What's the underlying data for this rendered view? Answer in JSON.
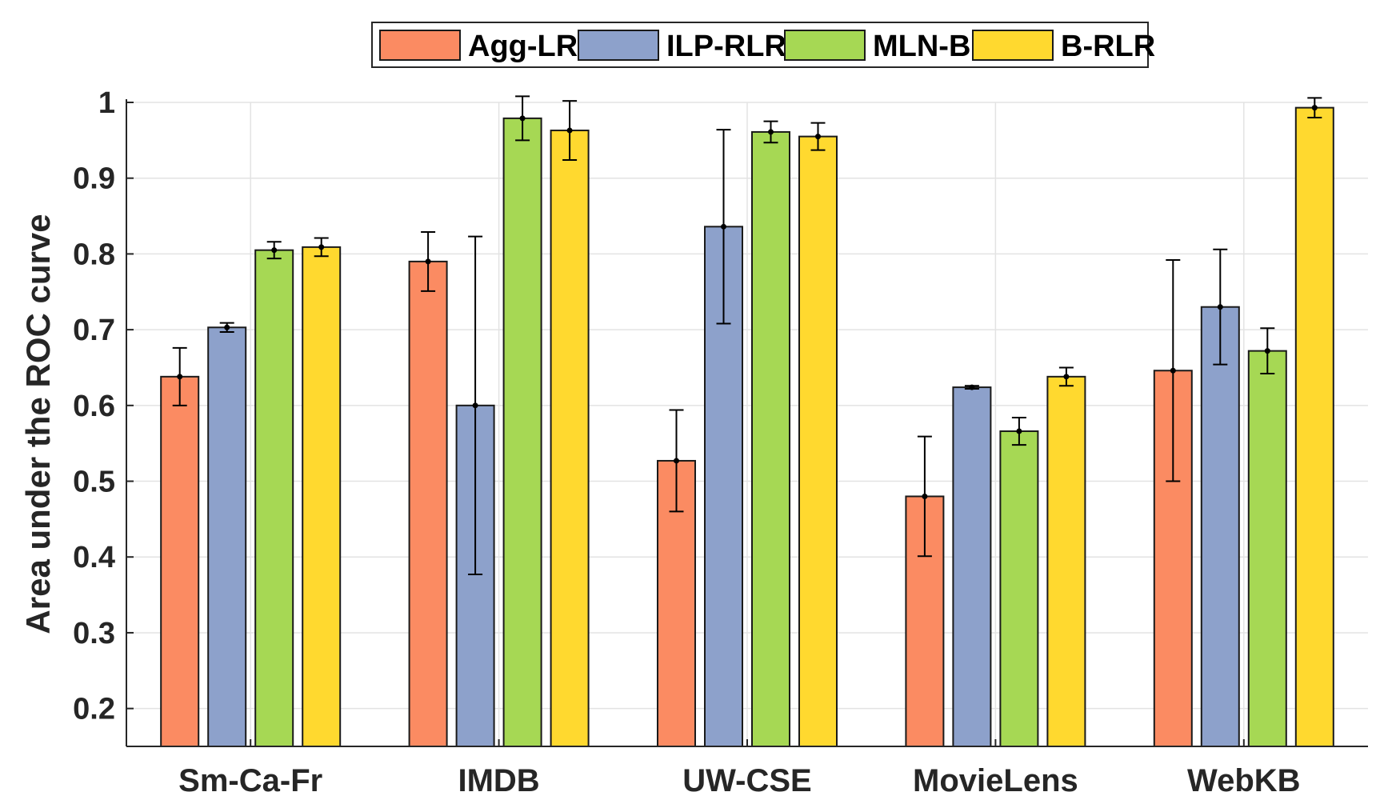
{
  "chart_data": {
    "type": "bar",
    "title": "",
    "xlabel": "",
    "ylabel": "Area under the ROC curve",
    "ylim": [
      0.15,
      1.0
    ],
    "yticks": [
      0.2,
      0.3,
      0.4,
      0.5,
      0.6,
      0.7,
      0.8,
      0.9,
      1
    ],
    "ytick_labels": [
      "0.2",
      "0.3",
      "0.4",
      "0.5",
      "0.6",
      "0.7",
      "0.8",
      "0.9",
      "1"
    ],
    "grid": true,
    "legend_position": "top-center",
    "categories": [
      "Sm-Ca-Fr",
      "IMDB",
      "UW-CSE",
      "MovieLens",
      "WebKB"
    ],
    "series": [
      {
        "name": "Agg-LR",
        "color": "#fb8b62",
        "values": [
          0.638,
          0.79,
          0.527,
          0.48,
          0.646
        ],
        "errors": [
          0.038,
          0.039,
          0.067,
          0.079,
          0.146
        ]
      },
      {
        "name": "ILP-RLR",
        "color": "#8da1cb",
        "values": [
          0.703,
          0.6,
          0.836,
          0.624,
          0.73
        ],
        "errors": [
          0.006,
          0.223,
          0.128,
          0.002,
          0.076
        ]
      },
      {
        "name": "MLN-B",
        "color": "#a6d854",
        "values": [
          0.805,
          0.979,
          0.961,
          0.566,
          0.672
        ],
        "errors": [
          0.011,
          0.029,
          0.014,
          0.018,
          0.03
        ]
      },
      {
        "name": "B-RLR",
        "color": "#ffd92f",
        "values": [
          0.809,
          0.963,
          0.955,
          0.638,
          0.993
        ],
        "errors": [
          0.012,
          0.039,
          0.018,
          0.012,
          0.013
        ]
      }
    ]
  }
}
